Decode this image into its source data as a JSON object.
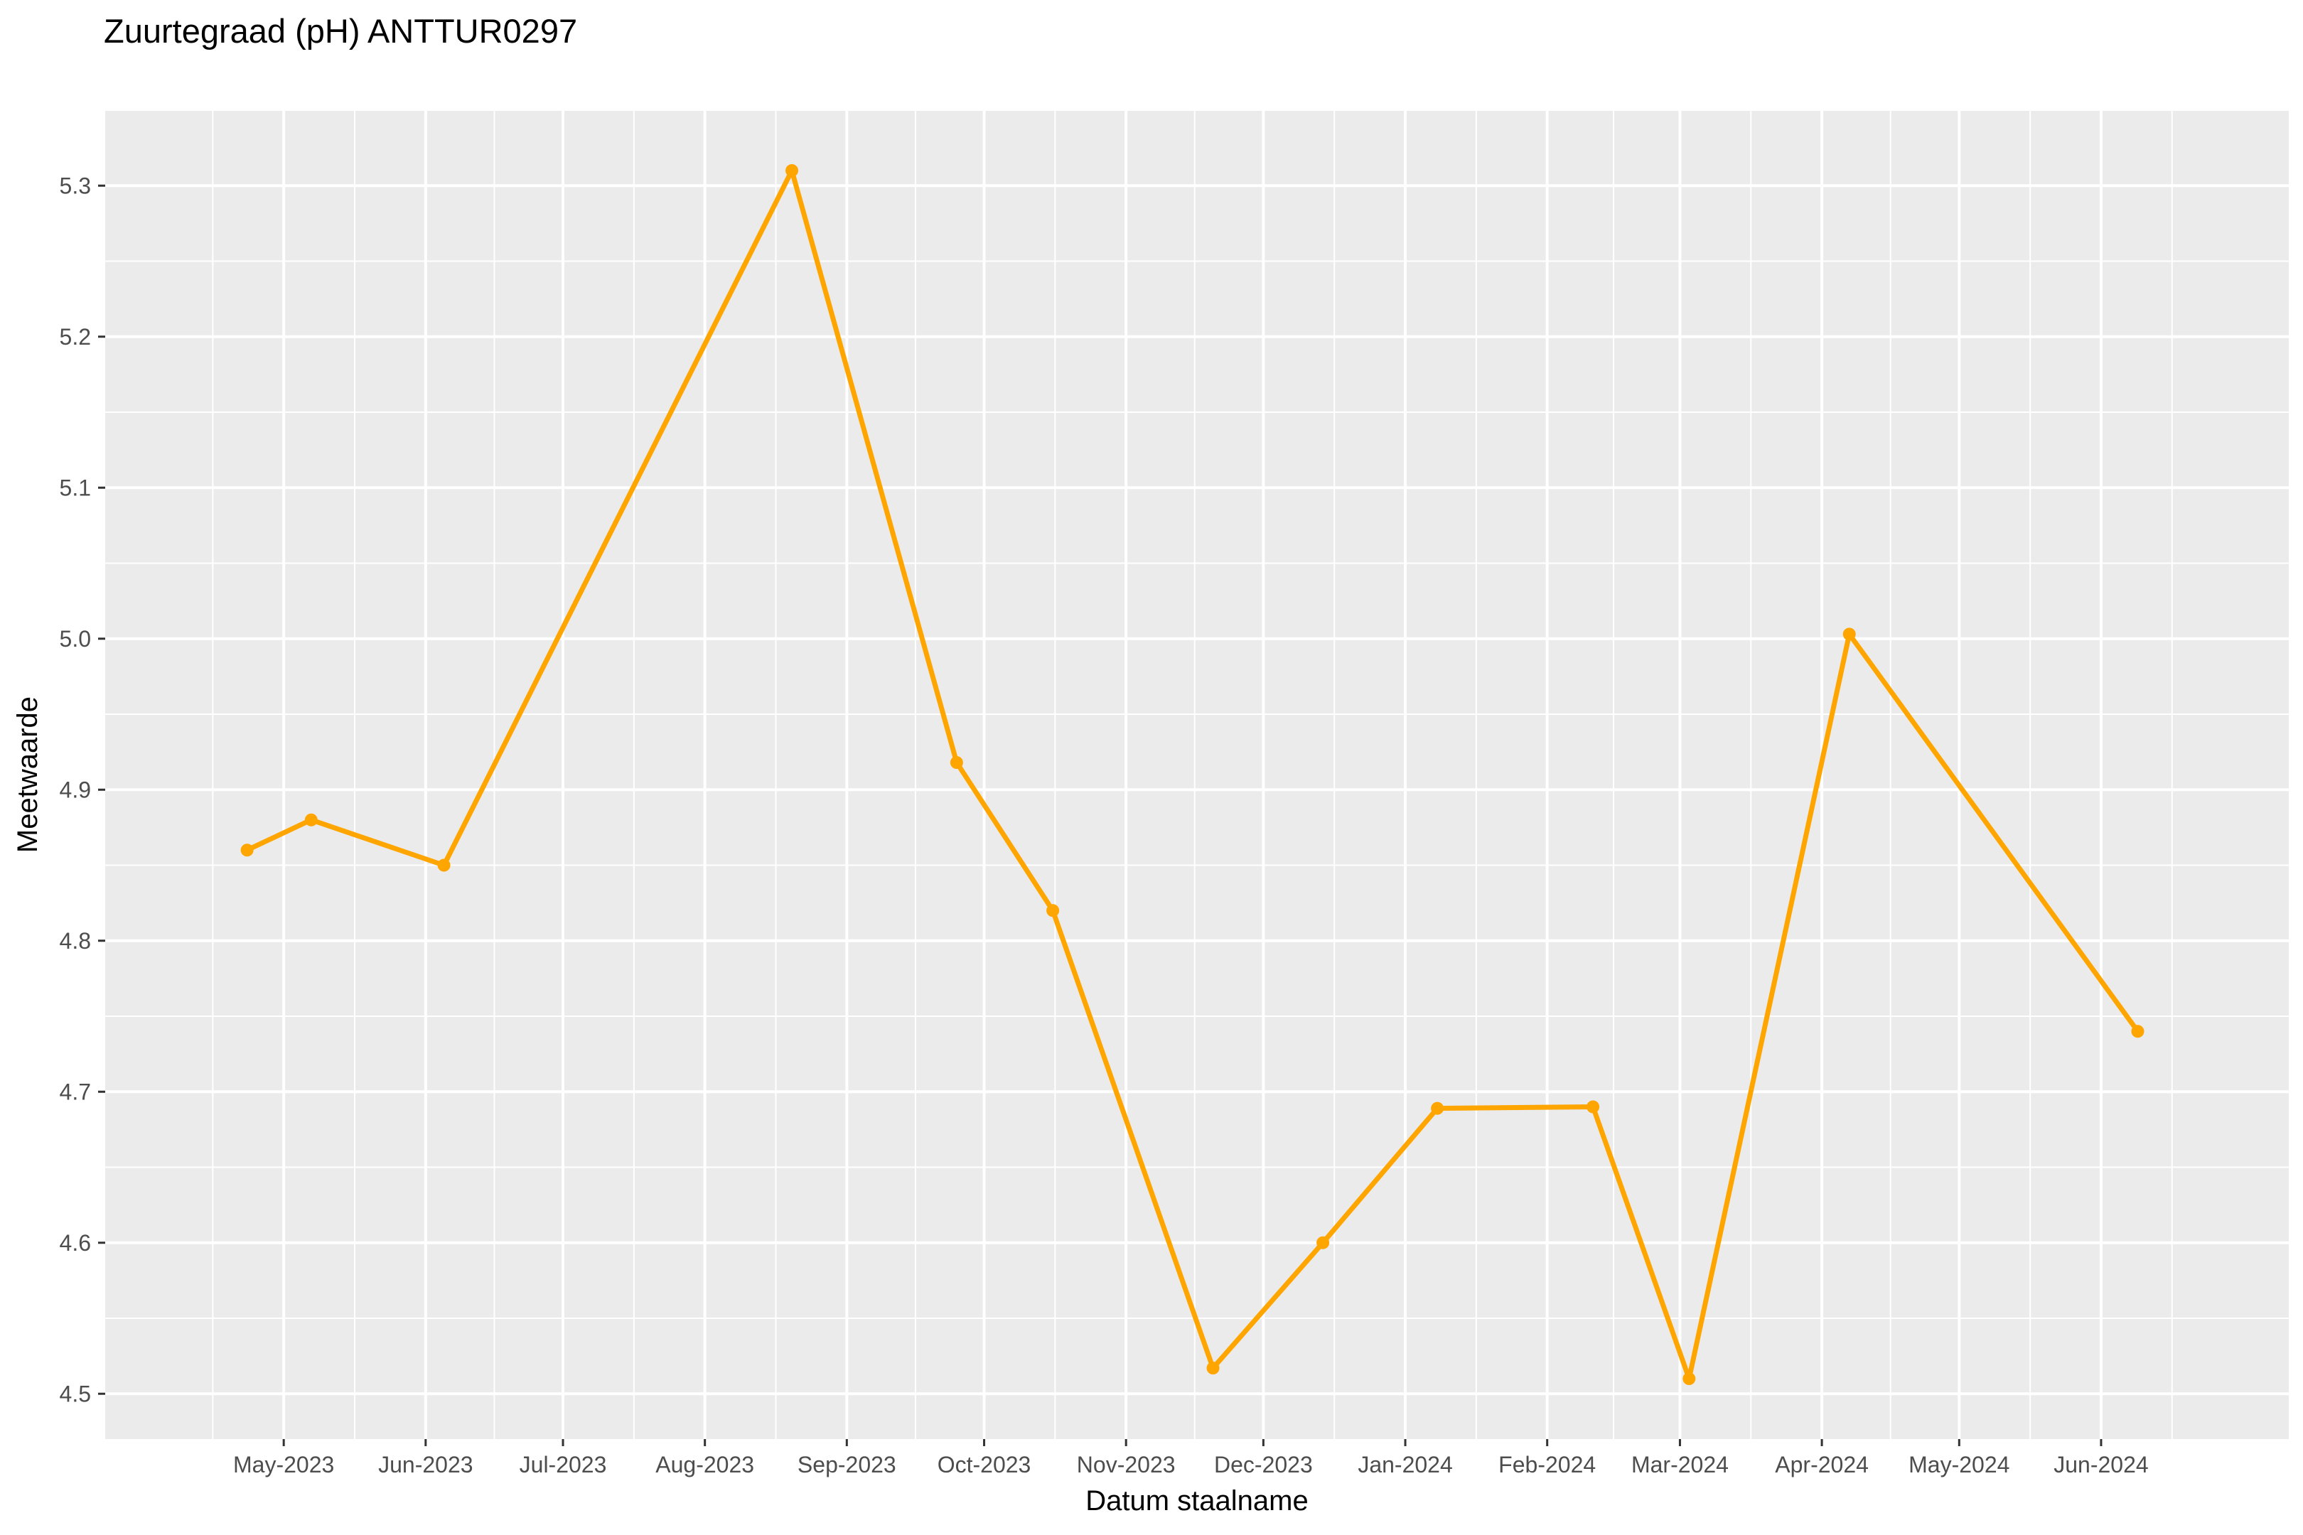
{
  "chart_data": {
    "type": "line",
    "title": "Zuurtegraad (pH) ANTTUR0297",
    "xlabel": "Datum staalname",
    "ylabel": "Meetwaarde",
    "x_tick_labels": [
      "May-2023",
      "Jun-2023",
      "Jul-2023",
      "Aug-2023",
      "Sep-2023",
      "Oct-2023",
      "Nov-2023",
      "Dec-2023",
      "Jan-2024",
      "Feb-2024",
      "Mar-2024",
      "Apr-2024",
      "May-2024",
      "Jun-2024"
    ],
    "x_tick_dates": [
      "2023-05-01",
      "2023-06-01",
      "2023-07-01",
      "2023-08-01",
      "2023-09-01",
      "2023-10-01",
      "2023-11-01",
      "2023-12-01",
      "2024-01-01",
      "2024-02-01",
      "2024-03-01",
      "2024-04-01",
      "2024-05-01",
      "2024-06-01"
    ],
    "y_ticks": [
      4.5,
      4.6,
      4.7,
      4.8,
      4.9,
      5.0,
      5.1,
      5.2,
      5.3
    ],
    "y_tick_labels": [
      "4.5",
      "4.6",
      "4.7",
      "4.8",
      "4.9",
      "5.0",
      "5.1",
      "5.2",
      "5.3"
    ],
    "xlim": [
      "2023-03-23",
      "2024-07-12"
    ],
    "ylim": [
      4.47,
      5.35
    ],
    "grid": true,
    "line_color": "#FFA500",
    "panel_color": "#EBEBEB",
    "grid_color": "#FFFFFF",
    "x": [
      "2023-04-23",
      "2023-05-07",
      "2023-06-05",
      "2023-08-20",
      "2023-09-25",
      "2023-10-16",
      "2023-11-20",
      "2023-12-14",
      "2024-01-08",
      "2024-02-11",
      "2024-03-03",
      "2024-04-07",
      "2024-06-09"
    ],
    "y": [
      4.86,
      4.88,
      4.85,
      5.31,
      4.918,
      4.82,
      4.517,
      4.6,
      4.689,
      4.69,
      4.51,
      5.003,
      4.74
    ]
  }
}
